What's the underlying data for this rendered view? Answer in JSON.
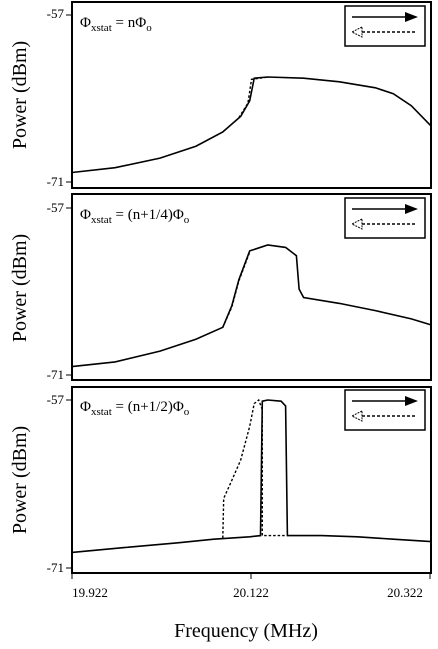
{
  "chart_data": [
    {
      "type": "line",
      "annotation": {
        "prefix": "Φ",
        "sub": "xstat",
        "eq": " = nΦ",
        "sub2": "o"
      },
      "ylabel": "Power (dBm)",
      "yticks": [
        "-57",
        "-71"
      ],
      "ylim": [
        -71,
        -57
      ],
      "xlim": [
        19.922,
        20.322
      ],
      "legend": {
        "placement": "top-right",
        "series": [
          "up-sweep (solid arrow)",
          "down-sweep (dashed arrow)"
        ]
      },
      "series": [
        {
          "style": "solid",
          "points": [
            [
              19.922,
              -70.2
            ],
            [
              19.97,
              -69.8
            ],
            [
              20.02,
              -69.0
            ],
            [
              20.06,
              -68.0
            ],
            [
              20.09,
              -66.8
            ],
            [
              20.11,
              -65.5
            ],
            [
              20.12,
              -64.2
            ],
            [
              20.125,
              -62.3
            ],
            [
              20.14,
              -62.2
            ],
            [
              20.18,
              -62.3
            ],
            [
              20.22,
              -62.6
            ],
            [
              20.26,
              -63.1
            ],
            [
              20.28,
              -63.6
            ],
            [
              20.3,
              -64.6
            ],
            [
              20.322,
              -66.3
            ]
          ]
        },
        {
          "style": "dashed",
          "points": [
            [
              20.108,
              -65.6
            ],
            [
              20.118,
              -64.4
            ],
            [
              20.122,
              -62.4
            ],
            [
              20.14,
              -62.2
            ]
          ]
        }
      ]
    },
    {
      "type": "line",
      "annotation": {
        "prefix": "Φ",
        "sub": "xstat",
        "eq": " = (n+1/4)Φ",
        "sub2": "o"
      },
      "ylabel": "Power (dBm)",
      "yticks": [
        "-57",
        "-71"
      ],
      "ylim": [
        -71,
        -57
      ],
      "xlim": [
        19.922,
        20.322
      ],
      "legend": {
        "placement": "top-right",
        "series": [
          "up-sweep (solid arrow)",
          "down-sweep (dashed arrow)"
        ]
      },
      "series": [
        {
          "style": "solid",
          "points": [
            [
              19.922,
              -70.3
            ],
            [
              19.97,
              -69.9
            ],
            [
              20.02,
              -69.0
            ],
            [
              20.06,
              -68.0
            ],
            [
              20.09,
              -67.0
            ],
            [
              20.1,
              -65.2
            ],
            [
              20.108,
              -63.0
            ],
            [
              20.12,
              -60.6
            ],
            [
              20.14,
              -60.1
            ],
            [
              20.16,
              -60.3
            ],
            [
              20.172,
              -61.0
            ],
            [
              20.175,
              -63.8
            ],
            [
              20.18,
              -64.5
            ],
            [
              20.22,
              -65.0
            ],
            [
              20.26,
              -65.6
            ],
            [
              20.3,
              -66.3
            ],
            [
              20.322,
              -66.8
            ]
          ]
        },
        {
          "style": "dashed",
          "points": [
            [
              20.09,
              -67.0
            ],
            [
              20.1,
              -65.3
            ],
            [
              20.108,
              -63.1
            ],
            [
              20.12,
              -60.7
            ]
          ]
        }
      ]
    },
    {
      "type": "line",
      "annotation": {
        "prefix": "Φ",
        "sub": "xstat",
        "eq": " = (n+1/2)Φ",
        "sub2": "o"
      },
      "ylabel": "Power (dBm)",
      "yticks": [
        "-57",
        "-71"
      ],
      "ylim": [
        -71,
        -57
      ],
      "xlim": [
        19.922,
        20.322
      ],
      "xticks": [
        "19.922",
        "20.122",
        "20.322"
      ],
      "xlabel": "Frequency (MHz)",
      "legend": {
        "placement": "top-right",
        "series": [
          "up-sweep (solid arrow)",
          "down-sweep (dashed arrow)"
        ]
      },
      "series": [
        {
          "style": "solid",
          "points": [
            [
              19.922,
              -69.7
            ],
            [
              19.98,
              -69.3
            ],
            [
              20.04,
              -68.9
            ],
            [
              20.08,
              -68.6
            ],
            [
              20.12,
              -68.4
            ],
            [
              20.132,
              -68.3
            ],
            [
              20.134,
              -57.1
            ],
            [
              20.14,
              -57.0
            ],
            [
              20.155,
              -57.1
            ],
            [
              20.16,
              -57.5
            ],
            [
              20.162,
              -68.3
            ],
            [
              20.2,
              -68.3
            ],
            [
              20.24,
              -68.4
            ],
            [
              20.28,
              -68.6
            ],
            [
              20.322,
              -68.8
            ]
          ]
        },
        {
          "style": "dashed",
          "points": [
            [
              20.09,
              -68.5
            ],
            [
              20.091,
              -65.2
            ],
            [
              20.1,
              -63.7
            ],
            [
              20.11,
              -62.0
            ],
            [
              20.12,
              -59.2
            ],
            [
              20.125,
              -57.3
            ],
            [
              20.13,
              -57.0
            ],
            [
              20.134,
              -57.8
            ],
            [
              20.134,
              -68.3
            ],
            [
              20.16,
              -68.3
            ]
          ]
        }
      ]
    }
  ]
}
